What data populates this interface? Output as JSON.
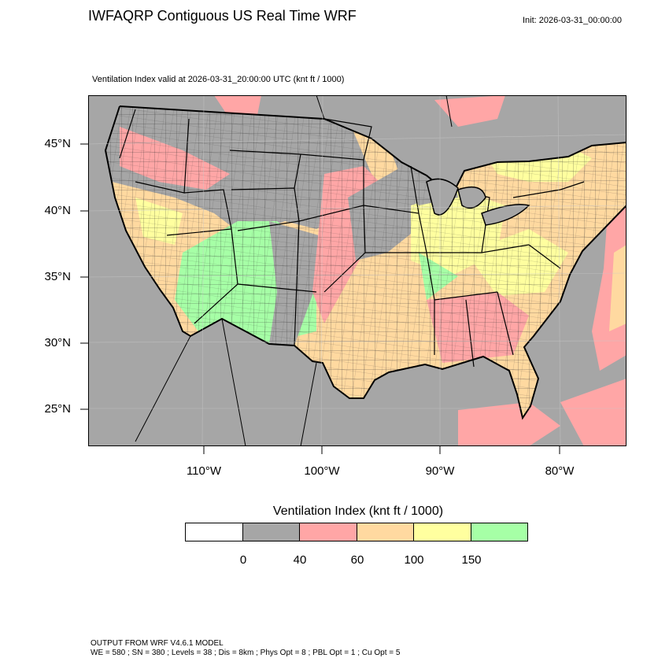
{
  "header": {
    "title": "IWFAQRP Contiguous US Real Time WRF",
    "init": "Init: 2026-03-31_00:00:00",
    "subtitle": "Ventilation Index valid at 2026-03-31_20:00:00 UTC   (knt ft / 1000)"
  },
  "axes": {
    "lat_labels": [
      "45°N",
      "40°N",
      "35°N",
      "30°N",
      "25°N"
    ],
    "lon_labels": [
      "110°W",
      "100°W",
      "90°W",
      "80°W"
    ]
  },
  "legend": {
    "title": "Ventilation Index  (knt ft / 1000)",
    "ticks": [
      "0",
      "40",
      "60",
      "100",
      "150"
    ],
    "colors": [
      "#ffffff",
      "#a6a6a6",
      "#ffa6a6",
      "#ffd9a0",
      "#ffff9f",
      "#a6ffa6"
    ]
  },
  "footer": {
    "line1": "OUTPUT FROM WRF V4.6.1 MODEL",
    "line2": "WE = 580 ; SN = 380 ; Levels = 38 ; Dis = 8km ; Phys Opt = 8 ; PBL Opt = 1 ; Cu Opt = 5"
  }
}
